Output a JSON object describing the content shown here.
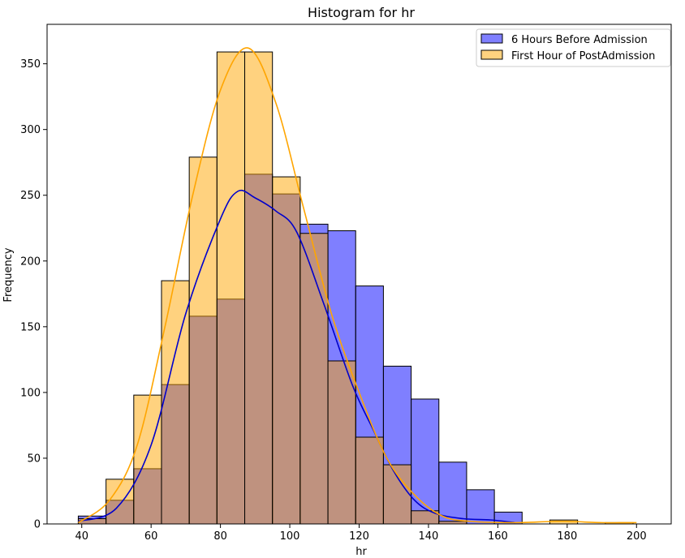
{
  "chart_data": {
    "type": "bar",
    "subtype": "overlaid-histogram-with-kde",
    "title": "Histogram for hr",
    "xlabel": "hr",
    "ylabel": "Frequency",
    "xlim": [
      30,
      210
    ],
    "ylim": [
      0,
      380
    ],
    "xticks": [
      40,
      60,
      80,
      100,
      120,
      140,
      160,
      180,
      200
    ],
    "yticks": [
      0,
      50,
      100,
      150,
      200,
      250,
      300,
      350
    ],
    "grid": false,
    "legend_position": "top-right",
    "series": [
      {
        "name": "6 Hours Before Admission",
        "color": "#0000ff",
        "kde_color": "#0000cc",
        "bins": [
          {
            "x0": 39,
            "x1": 47,
            "value": 6
          },
          {
            "x0": 47,
            "x1": 55,
            "value": 18
          },
          {
            "x0": 55,
            "x1": 63,
            "value": 42
          },
          {
            "x0": 63,
            "x1": 71,
            "value": 106
          },
          {
            "x0": 71,
            "x1": 79,
            "value": 158
          },
          {
            "x0": 79,
            "x1": 87,
            "value": 171
          },
          {
            "x0": 87,
            "x1": 95,
            "value": 266
          },
          {
            "x0": 95,
            "x1": 103,
            "value": 251
          },
          {
            "x0": 103,
            "x1": 111,
            "value": 228
          },
          {
            "x0": 111,
            "x1": 119,
            "value": 223
          },
          {
            "x0": 119,
            "x1": 127,
            "value": 181
          },
          {
            "x0": 127,
            "x1": 135,
            "value": 120
          },
          {
            "x0": 135,
            "x1": 143,
            "value": 95
          },
          {
            "x0": 143,
            "x1": 151,
            "value": 47
          },
          {
            "x0": 151,
            "x1": 159,
            "value": 26
          },
          {
            "x0": 159,
            "x1": 167,
            "value": 9
          }
        ],
        "kde": [
          [
            39,
            2
          ],
          [
            50,
            12
          ],
          [
            60,
            60
          ],
          [
            70,
            160
          ],
          [
            80,
            232
          ],
          [
            85,
            253
          ],
          [
            90,
            248
          ],
          [
            96,
            238
          ],
          [
            102,
            222
          ],
          [
            110,
            166
          ],
          [
            118,
            106
          ],
          [
            124,
            72
          ],
          [
            130,
            40
          ],
          [
            136,
            18
          ],
          [
            142,
            8
          ],
          [
            150,
            4
          ],
          [
            158,
            3
          ],
          [
            165,
            1
          ]
        ]
      },
      {
        "name": "First Hour of PostAdmission",
        "color": "#ffa500",
        "kde_color": "#ffa500",
        "bins": [
          {
            "x0": 39,
            "x1": 47,
            "value": 4
          },
          {
            "x0": 47,
            "x1": 55,
            "value": 34
          },
          {
            "x0": 55,
            "x1": 63,
            "value": 98
          },
          {
            "x0": 63,
            "x1": 71,
            "value": 185
          },
          {
            "x0": 71,
            "x1": 79,
            "value": 279
          },
          {
            "x0": 79,
            "x1": 87,
            "value": 359
          },
          {
            "x0": 87,
            "x1": 95,
            "value": 359
          },
          {
            "x0": 95,
            "x1": 103,
            "value": 264
          },
          {
            "x0": 103,
            "x1": 111,
            "value": 221
          },
          {
            "x0": 111,
            "x1": 119,
            "value": 124
          },
          {
            "x0": 119,
            "x1": 127,
            "value": 66
          },
          {
            "x0": 127,
            "x1": 135,
            "value": 45
          },
          {
            "x0": 135,
            "x1": 143,
            "value": 10
          },
          {
            "x0": 143,
            "x1": 151,
            "value": 2
          },
          {
            "x0": 175,
            "x1": 183,
            "value": 3
          },
          {
            "x0": 191,
            "x1": 199,
            "value": 1
          }
        ],
        "kde": [
          [
            39,
            1
          ],
          [
            48,
            18
          ],
          [
            56,
            60
          ],
          [
            64,
            150
          ],
          [
            72,
            250
          ],
          [
            80,
            330
          ],
          [
            88,
            362
          ],
          [
            96,
            320
          ],
          [
            104,
            240
          ],
          [
            112,
            160
          ],
          [
            120,
            100
          ],
          [
            128,
            50
          ],
          [
            136,
            22
          ],
          [
            144,
            6
          ],
          [
            152,
            2
          ],
          [
            165,
            1
          ],
          [
            178,
            2
          ],
          [
            190,
            1
          ],
          [
            200,
            1
          ]
        ]
      }
    ]
  }
}
